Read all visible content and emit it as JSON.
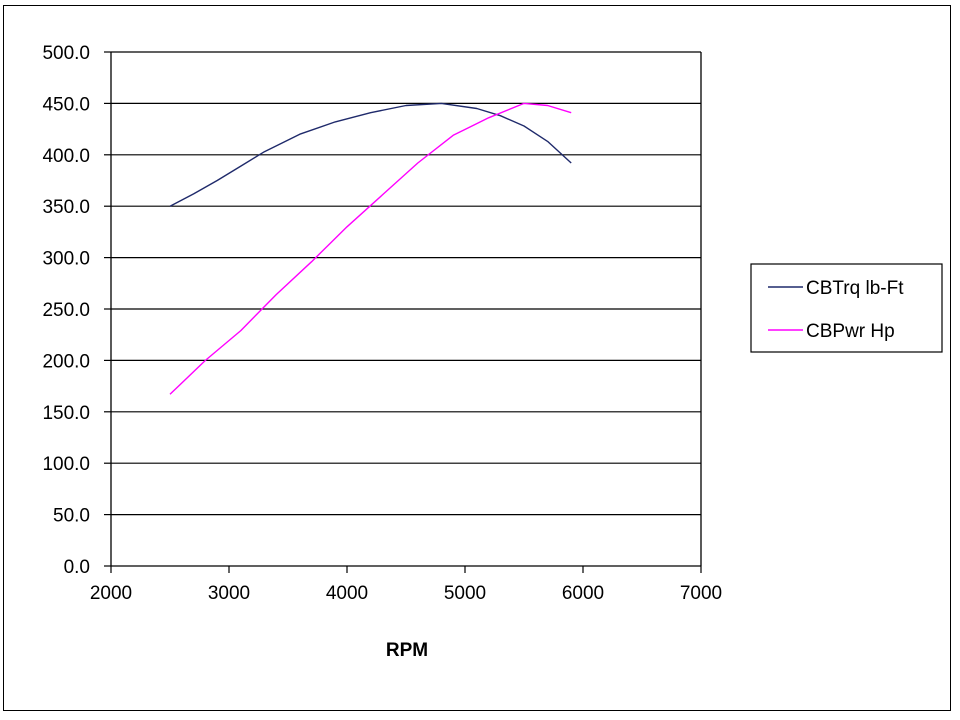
{
  "chart_data": {
    "type": "line",
    "title": "",
    "xlabel": "RPM",
    "ylabel": "",
    "xlim": [
      2000,
      7000
    ],
    "ylim": [
      0,
      500
    ],
    "x_ticks": [
      "2000",
      "3000",
      "4000",
      "5000",
      "6000",
      "7000"
    ],
    "y_ticks": [
      "0.0",
      "50.0",
      "100.0",
      "150.0",
      "200.0",
      "250.0",
      "300.0",
      "350.0",
      "400.0",
      "450.0",
      "500.0"
    ],
    "grid": "horizontal",
    "legend_position": "right",
    "series": [
      {
        "name": "CBTrq lb-Ft",
        "color": "#1f2a6b",
        "x": [
          2500,
          2700,
          2900,
          3100,
          3300,
          3600,
          3900,
          4200,
          4500,
          4800,
          5100,
          5300,
          5500,
          5700,
          5900
        ],
        "y": [
          350,
          362,
          375,
          389,
          403,
          420,
          432,
          441,
          448,
          450,
          445,
          438,
          428,
          413,
          392
        ]
      },
      {
        "name": "CBPwr Hp",
        "color": "#ff00ff",
        "x": [
          2500,
          2800,
          3100,
          3400,
          3700,
          4000,
          4300,
          4600,
          4900,
          5200,
          5500,
          5700,
          5900
        ],
        "y": [
          167,
          200,
          229,
          264,
          296,
          330,
          361,
          392,
          419,
          436,
          450,
          448,
          441
        ]
      }
    ]
  }
}
